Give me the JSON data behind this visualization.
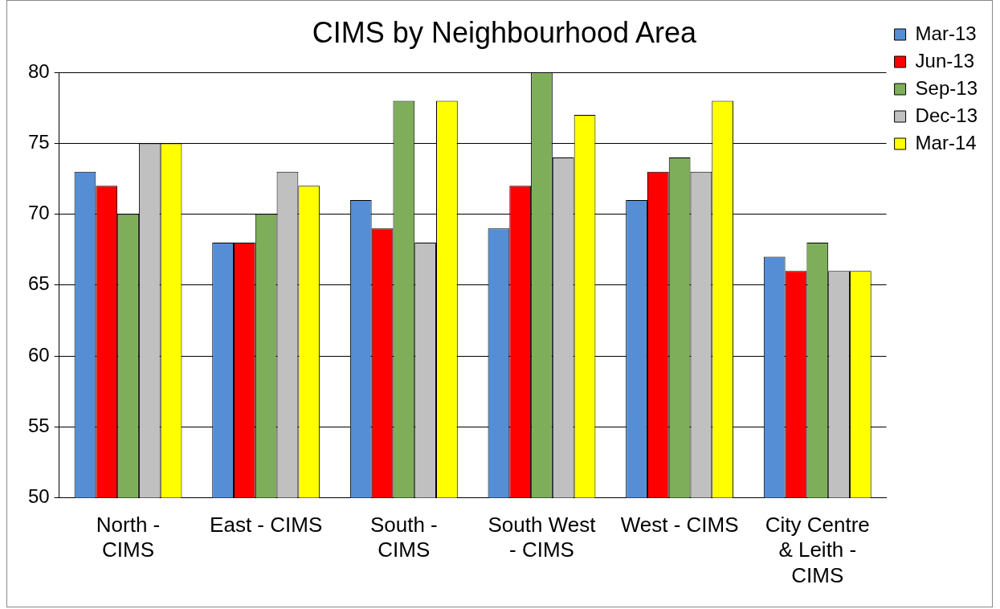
{
  "chart_data": {
    "type": "bar",
    "title": "CIMS by Neighbourhood Area",
    "categories": [
      "North - CIMS",
      "East - CIMS",
      "South - CIMS",
      "South West - CIMS",
      "West - CIMS",
      "City Centre & Leith - CIMS"
    ],
    "series": [
      {
        "name": "Mar-13",
        "color": "#558ed5",
        "values": [
          73,
          68,
          71,
          69,
          71,
          67
        ]
      },
      {
        "name": "Jun-13",
        "color": "#ff0000",
        "values": [
          72,
          68,
          69,
          72,
          73,
          66
        ]
      },
      {
        "name": "Sep-13",
        "color": "#7fae5a",
        "values": [
          70,
          70,
          78,
          80,
          74,
          68
        ]
      },
      {
        "name": "Dec-13",
        "color": "#c0c0c0",
        "values": [
          75,
          73,
          68,
          74,
          73,
          66
        ]
      },
      {
        "name": "Mar-14",
        "color": "#ffff00",
        "values": [
          75,
          72,
          78,
          77,
          78,
          66
        ]
      }
    ],
    "ylim": [
      50,
      80
    ],
    "yticks": [
      50,
      55,
      60,
      65,
      70,
      75,
      80
    ],
    "grid": "y",
    "legend": "right"
  }
}
